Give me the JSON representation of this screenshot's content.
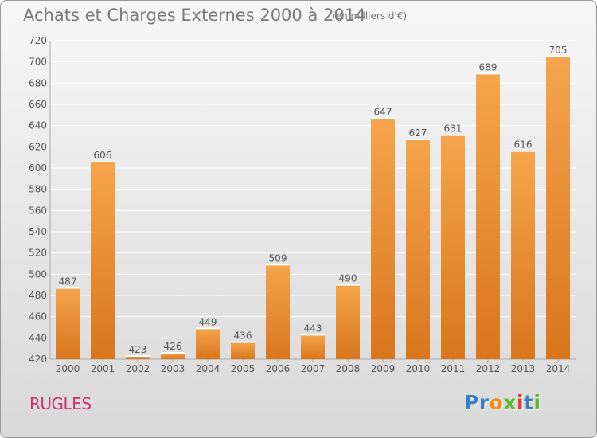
{
  "title": "Achats et Charges Externes 2000 à 2014",
  "unit": "(en milliers d'€)",
  "commune": "RUGLES",
  "logo": {
    "letters": [
      "P",
      "r",
      "o",
      "x",
      "i",
      "t",
      "i"
    ],
    "colors": [
      "#3a7fc1",
      "#3a7fc1",
      "#f08c1e",
      "#5cb82c",
      "#e03a3a",
      "#3a7fc1",
      "#5cb82c"
    ]
  },
  "colors": {
    "bar_light": "#f5a54c",
    "bar_dark": "#d9761c",
    "grid": "#ffffff",
    "text": "#555555"
  },
  "chart_data": {
    "type": "bar",
    "title": "Achats et Charges Externes 2000 à 2014",
    "categories": [
      "2000",
      "2001",
      "2002",
      "2003",
      "2004",
      "2005",
      "2006",
      "2007",
      "2008",
      "2009",
      "2010",
      "2011",
      "2012",
      "2013",
      "2014"
    ],
    "values": [
      487,
      606,
      423,
      426,
      449,
      436,
      509,
      443,
      490,
      647,
      627,
      631,
      689,
      616,
      705
    ],
    "ylim": [
      420,
      720
    ],
    "yticks": [
      420,
      440,
      460,
      480,
      500,
      520,
      540,
      560,
      580,
      600,
      620,
      640,
      660,
      680,
      700,
      720
    ],
    "grid": true,
    "xlabel": "",
    "ylabel": ""
  }
}
